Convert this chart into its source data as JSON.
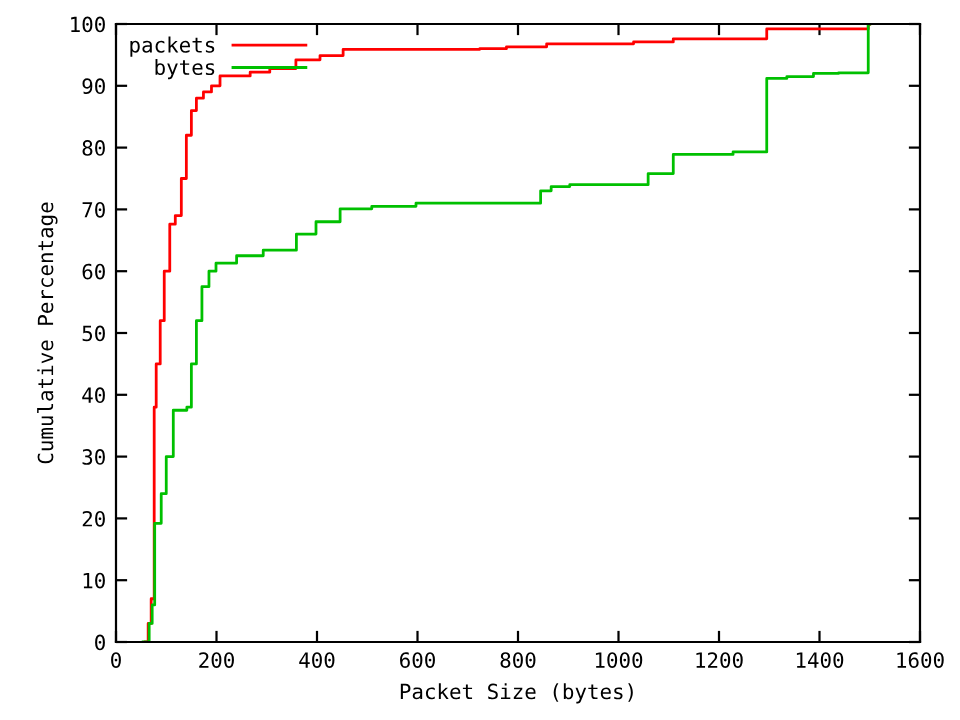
{
  "chart_data": {
    "type": "step",
    "xlabel": "Packet Size (bytes)",
    "ylabel": "Cumulative Percentage",
    "xlim": [
      0,
      1600
    ],
    "ylim": [
      0,
      100
    ],
    "xticks": [
      0,
      200,
      400,
      600,
      800,
      1000,
      1200,
      1400,
      1600
    ],
    "yticks": [
      0,
      10,
      20,
      30,
      40,
      50,
      60,
      70,
      80,
      90,
      100
    ],
    "grid": false,
    "legend": "top left",
    "series": [
      {
        "name": "packets",
        "color": "#ff0000",
        "x": [
          58,
          64,
          70,
          76,
          80,
          88,
          96,
          107,
          118,
          130,
          140,
          150,
          160,
          174,
          190,
          207,
          267,
          306,
          358,
          406,
          452,
          724,
          777,
          857,
          1030,
          1109,
          1295,
          1497,
          1500
        ],
        "values": [
          0,
          3,
          7,
          38,
          45,
          52,
          60,
          67.6,
          69,
          75,
          82,
          86,
          88,
          89,
          90,
          91.6,
          92.2,
          92.8,
          94.2,
          94.9,
          95.9,
          96.0,
          96.3,
          96.8,
          97.1,
          97.6,
          99.2,
          100,
          100
        ]
      },
      {
        "name": "bytes",
        "color": "#00c000",
        "x": [
          54,
          66,
          72,
          77,
          90,
          100,
          114,
          141,
          150,
          160,
          171,
          185,
          199,
          240,
          293,
          359,
          398,
          446,
          509,
          597,
          824,
          845,
          866,
          903,
          1059,
          1109,
          1228,
          1295,
          1335,
          1388,
          1438,
          1497,
          1500
        ],
        "values": [
          0,
          3,
          6,
          19.2,
          24,
          30,
          37.5,
          38,
          45,
          52,
          57.5,
          60,
          61.3,
          62.5,
          63.4,
          66,
          68,
          70.1,
          70.5,
          71.0,
          71.0,
          73,
          73.7,
          74.0,
          75.8,
          78.9,
          79.3,
          91.2,
          91.5,
          92,
          92.1,
          100,
          100
        ]
      }
    ]
  }
}
